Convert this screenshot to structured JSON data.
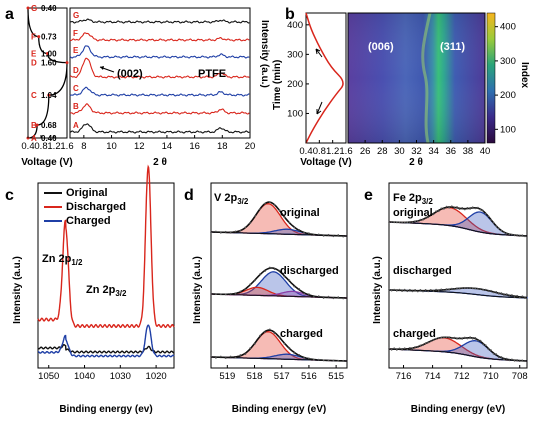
{
  "labels": {
    "a": "a",
    "b": "b",
    "c": "c",
    "d": "d",
    "e": "e"
  },
  "colors": {
    "black": "#111111",
    "red": "#d9261c",
    "blue": "#1f3fa6",
    "fill_red": "#e53b2a",
    "fill_blue": "#3a58c0",
    "fill_purple": "#8a3fa8"
  },
  "chart_data": [
    {
      "id": "a-voltage",
      "type": "line",
      "xlabel": "Voltage (V)",
      "xticks": [
        "0.4",
        "0.8",
        "1.2",
        "1.6"
      ],
      "xlim": [
        0.4,
        1.6
      ],
      "points": [
        "A",
        "B",
        "C",
        "D",
        "E",
        "F",
        "G"
      ],
      "point_values": [
        "0.40",
        "0.68",
        "1.04",
        "1.60",
        "1.00",
        "0.73",
        "0.40"
      ],
      "point_voltages": [
        0.4,
        0.68,
        1.04,
        1.6,
        1.0,
        0.73,
        0.4
      ],
      "point_positions": [
        0.0,
        0.1,
        0.33,
        0.58,
        0.65,
        0.78,
        1.0
      ]
    },
    {
      "id": "a-xrd",
      "type": "line",
      "xlabel": "2 θ",
      "ylabel": "Intensity (a.u.)",
      "xticks": [
        "8",
        "10",
        "12",
        "14",
        "16",
        "18",
        "20"
      ],
      "xlim": [
        7,
        20
      ],
      "series_labels": [
        "A",
        "B",
        "C",
        "D",
        "E",
        "F",
        "G"
      ],
      "series_colors": [
        "#111111",
        "#d9261c",
        "#1f3fa6",
        "#d9261c",
        "#1f3fa6",
        "#d9261c",
        "#111111"
      ],
      "annotations": {
        "peak1": "(002)",
        "peak2": "PTFE"
      },
      "peaks": [
        {
          "x": 8.2,
          "height": [
            0.7,
            0.7,
            0.6,
            1.6,
            0.9,
            0.6,
            0.2
          ]
        },
        {
          "x": 17.9,
          "height": [
            0.35,
            0.3,
            0.25,
            0.35,
            0.2,
            0.15,
            0.15
          ]
        }
      ]
    },
    {
      "id": "b-voltage",
      "type": "line",
      "xlabel": "Voltage (V)",
      "ylabel": "Time (min)",
      "xticks": [
        "0.4",
        "0.8",
        "1.2",
        "1.6"
      ],
      "yticks": [
        "100",
        "200",
        "300",
        "400"
      ],
      "xlim": [
        0.4,
        1.6
      ],
      "ylim": [
        0,
        440
      ],
      "curve": [
        [
          0.4,
          0
        ],
        [
          0.6,
          45
        ],
        [
          0.95,
          110
        ],
        [
          1.3,
          165
        ],
        [
          1.6,
          205
        ],
        [
          1.15,
          255
        ],
        [
          0.8,
          325
        ],
        [
          0.55,
          385
        ],
        [
          0.4,
          440
        ]
      ]
    },
    {
      "id": "b-heatmap",
      "type": "heatmap",
      "xlabel": "2 θ",
      "xticks": [
        "26",
        "28",
        "30",
        "32",
        "34",
        "36",
        "38",
        "40"
      ],
      "xlim": [
        24,
        40
      ],
      "annotations": {
        "peak1": "(006)",
        "peak2": "(311)"
      },
      "colorbar": {
        "label": "Index",
        "ticks": [
          "100",
          "200",
          "300",
          "400"
        ],
        "range": [
          60,
          440
        ]
      },
      "bands": [
        {
          "x0": 33.4,
          "x1": 35.2,
          "intensity": "high"
        },
        {
          "x0": 28.5,
          "x1": 31.5,
          "intensity": "low"
        }
      ]
    },
    {
      "id": "c",
      "type": "line",
      "xlabel": "Binding energy (ev)",
      "ylabel": "Intensity (a.u.)",
      "xticks": [
        "1050",
        "1040",
        "1030",
        "1020"
      ],
      "xlim": [
        1053,
        1015
      ],
      "legend": [
        "Original",
        "Discharged",
        "Charged"
      ],
      "annotations": {
        "p1": "Zn 2p",
        "p1sub": "1/2",
        "p2": "Zn 2p",
        "p2sub": "3/2"
      },
      "peaks": [
        {
          "x": 1045.3,
          "heights": [
            0.03,
            0.62,
            0.18
          ]
        },
        {
          "x": 1022.2,
          "heights": [
            0.05,
            1.0,
            0.35
          ]
        }
      ]
    },
    {
      "id": "d",
      "type": "line",
      "title": "V 2p",
      "titlesub": "3/2",
      "xlabel": "Binding energy (eV)",
      "ylabel": "Intensity (a.u.)",
      "xticks": [
        "519",
        "518",
        "517",
        "516",
        "515"
      ],
      "xlim": [
        519.6,
        514.6
      ],
      "panels": [
        "original",
        "discharged",
        "charged"
      ]
    },
    {
      "id": "e",
      "type": "line",
      "title": "Fe 2p",
      "titlesub": "3/2",
      "xlabel": "Binding energy (eV)",
      "ylabel": "Intensity (a.u.)",
      "xticks": [
        "716",
        "714",
        "712",
        "710",
        "708"
      ],
      "xlim": [
        717,
        707.5
      ],
      "panels": [
        "original",
        "discharged",
        "charged"
      ]
    }
  ]
}
